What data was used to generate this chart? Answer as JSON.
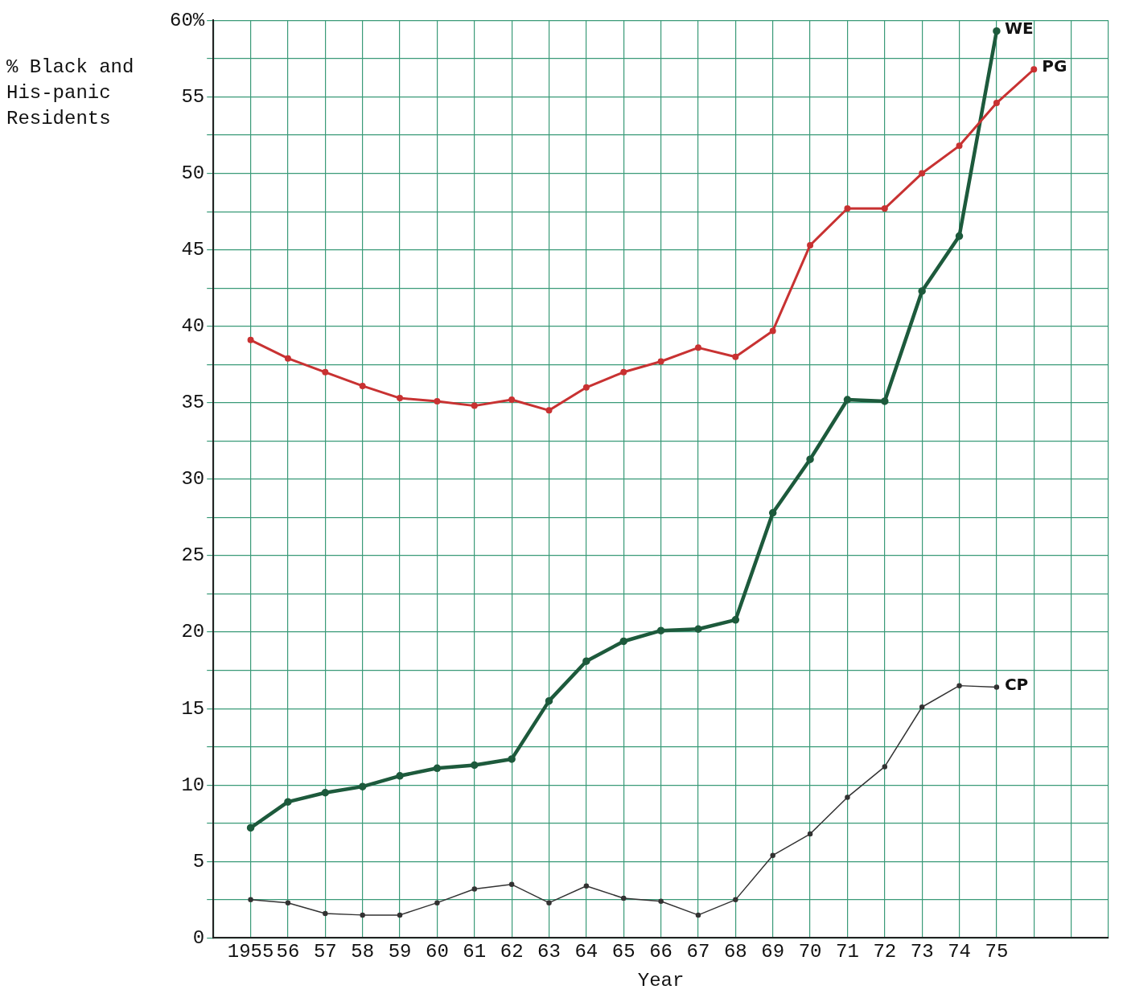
{
  "chart_data": {
    "type": "line",
    "xlabel": "Year",
    "ylabel": "% Black and His-panic Residents",
    "x": [
      1955,
      1956,
      1957,
      1958,
      1959,
      1960,
      1961,
      1962,
      1963,
      1964,
      1965,
      1966,
      1967,
      1968,
      1969,
      1970,
      1971,
      1972,
      1973,
      1974,
      1975
    ],
    "series": [
      {
        "name": "PG",
        "color": "#c83232",
        "x": [
          1955,
          1956,
          1957,
          1958,
          1959,
          1960,
          1961,
          1962,
          1963,
          1964,
          1965,
          1966,
          1967,
          1968,
          1969,
          1970,
          1971,
          1972,
          1973,
          1974,
          1975,
          1976
        ],
        "values": [
          39.1,
          37.9,
          37,
          36.1,
          35.3,
          35.1,
          34.8,
          35.2,
          34.5,
          36,
          37,
          37.7,
          38.6,
          38,
          39.7,
          45.3,
          47.7,
          47.7,
          50,
          51.8,
          54.6,
          56.8
        ]
      },
      {
        "name": "WE",
        "color": "#1d5a3c",
        "values": [
          7.2,
          8.9,
          9.5,
          9.9,
          10.6,
          11.1,
          11.3,
          11.7,
          15.5,
          18.1,
          19.4,
          20.1,
          20.2,
          20.8,
          27.8,
          31.3,
          35.2,
          35.1,
          42.3,
          45.9,
          59.3
        ]
      },
      {
        "name": "CP",
        "color": "#333333",
        "values": [
          2.5,
          2.3,
          1.6,
          1.5,
          1.5,
          2.3,
          3.2,
          3.5,
          2.3,
          3.4,
          2.6,
          2.4,
          1.5,
          2.5,
          5.4,
          6.8,
          9.2,
          11.2,
          15.1,
          16.5,
          16.4
        ]
      }
    ],
    "xlim": [
      1954,
      1978
    ],
    "xticks": [
      {
        "value": 1954,
        "label": null
      },
      {
        "value": 1955,
        "label": "1955"
      },
      {
        "value": 1956,
        "label": "56"
      },
      {
        "value": 1957,
        "label": "57"
      },
      {
        "value": 1958,
        "label": "58"
      },
      {
        "value": 1959,
        "label": "59"
      },
      {
        "value": 1960,
        "label": "60"
      },
      {
        "value": 1961,
        "label": "61"
      },
      {
        "value": 1962,
        "label": "62"
      },
      {
        "value": 1963,
        "label": "63"
      },
      {
        "value": 1964,
        "label": "64"
      },
      {
        "value": 1965,
        "label": "65"
      },
      {
        "value": 1966,
        "label": "66"
      },
      {
        "value": 1967,
        "label": "67"
      },
      {
        "value": 1968,
        "label": "68"
      },
      {
        "value": 1969,
        "label": "69"
      },
      {
        "value": 1970,
        "label": "70"
      },
      {
        "value": 1971,
        "label": "71"
      },
      {
        "value": 1972,
        "label": "72"
      },
      {
        "value": 1973,
        "label": "73"
      },
      {
        "value": 1974,
        "label": "74"
      },
      {
        "value": 1975,
        "label": "75"
      },
      {
        "value": 1976,
        "label": null
      },
      {
        "value": 1977,
        "label": null
      },
      {
        "value": 1978,
        "label": null
      }
    ],
    "ylim": [
      0,
      60
    ],
    "yticks": [
      0,
      {
        "value": 2.5,
        "label": null
      },
      5,
      {
        "value": 7.5,
        "label": null
      },
      10,
      {
        "value": 12.5,
        "label": null
      },
      15,
      {
        "value": 17.5,
        "label": null
      },
      20,
      {
        "value": 22.5,
        "label": null
      },
      25,
      {
        "value": 27.5,
        "label": null
      },
      30,
      {
        "value": 32.5,
        "label": null
      },
      35,
      {
        "value": 37.5,
        "label": null
      },
      40,
      {
        "value": 42.5,
        "label": null
      },
      45,
      {
        "value": 47.5,
        "label": null
      },
      50,
      {
        "value": 52.5,
        "label": null
      },
      55,
      {
        "value": 57.5,
        "label": null
      },
      {
        "value": 60,
        "label": "60%"
      }
    ],
    "grid": true,
    "legend": false,
    "marker": "circle",
    "line_style": "solid"
  }
}
